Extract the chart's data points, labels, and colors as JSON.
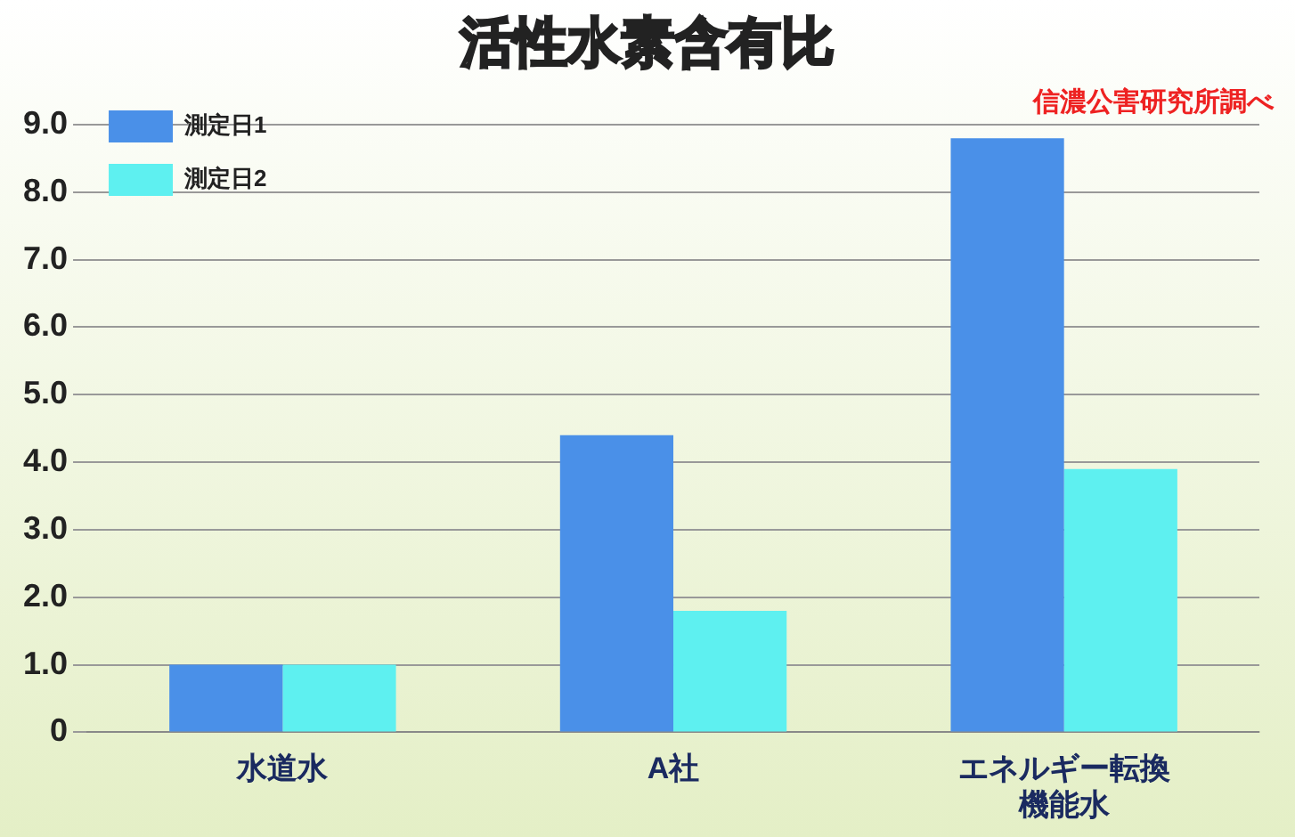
{
  "chart_data": {
    "type": "bar",
    "title": "活性水素含有比",
    "annotations": [
      "信濃公害研究所調べ"
    ],
    "categories": [
      "水道水",
      "A社",
      "エネルギー転換機能水"
    ],
    "series": [
      {
        "name": "測定日1",
        "color": "#4a90e8",
        "values": [
          1.0,
          4.4,
          8.8
        ]
      },
      {
        "name": "測定日2",
        "color": "#5ef0f0",
        "values": [
          1.0,
          1.8,
          3.9
        ]
      }
    ],
    "ylim": [
      0,
      9
    ],
    "yticks": [
      {
        "value": 0,
        "label": "0"
      },
      {
        "value": 1,
        "label": "1.0"
      },
      {
        "value": 2,
        "label": "2.0"
      },
      {
        "value": 3,
        "label": "3.0"
      },
      {
        "value": 4,
        "label": "4.0"
      },
      {
        "value": 5,
        "label": "5.0"
      },
      {
        "value": 6,
        "label": "6.0"
      },
      {
        "value": 7,
        "label": "7.0"
      },
      {
        "value": 8,
        "label": "8.0"
      },
      {
        "value": 9,
        "label": "9.0"
      }
    ],
    "grid": "y",
    "legend": "top left"
  }
}
